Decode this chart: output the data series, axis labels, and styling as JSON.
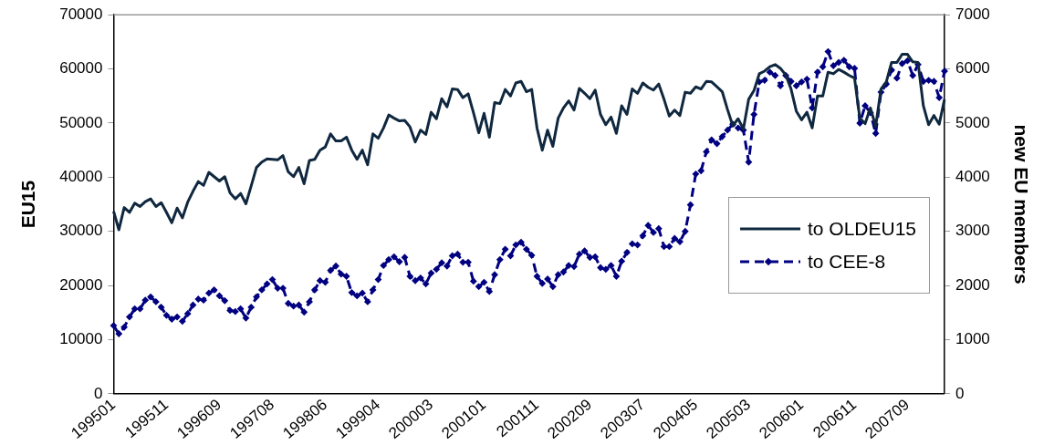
{
  "chart_data": {
    "type": "line",
    "categories": [
      "199501",
      null,
      null,
      null,
      null,
      null,
      null,
      null,
      null,
      null,
      "199511",
      null,
      null,
      null,
      null,
      null,
      null,
      null,
      null,
      null,
      "199609",
      null,
      null,
      null,
      null,
      null,
      null,
      null,
      null,
      null,
      "199708",
      null,
      null,
      null,
      null,
      null,
      null,
      null,
      null,
      null,
      "199806",
      null,
      null,
      null,
      null,
      null,
      null,
      null,
      null,
      null,
      "199904",
      null,
      null,
      null,
      null,
      null,
      null,
      null,
      null,
      null,
      "200003",
      null,
      null,
      null,
      null,
      null,
      null,
      null,
      null,
      null,
      "200101",
      null,
      null,
      null,
      null,
      null,
      null,
      null,
      null,
      null,
      "200111",
      null,
      null,
      null,
      null,
      null,
      null,
      null,
      null,
      null,
      "200209",
      null,
      null,
      null,
      null,
      null,
      null,
      null,
      null,
      null,
      "200307",
      null,
      null,
      null,
      null,
      null,
      null,
      null,
      null,
      null,
      "200405",
      null,
      null,
      null,
      null,
      null,
      null,
      null,
      null,
      null,
      "200503",
      null,
      null,
      null,
      null,
      null,
      null,
      null,
      null,
      null,
      "200601",
      null,
      null,
      null,
      null,
      null,
      null,
      null,
      null,
      null,
      "200611",
      null,
      null,
      null,
      null,
      null,
      null,
      null,
      null,
      null,
      "200709",
      null,
      null,
      null,
      null,
      null,
      null,
      null
    ],
    "ylabel": "EU15",
    "y2label": "new EU members",
    "ylim": [
      0,
      70000
    ],
    "yticks": [
      0,
      10000,
      20000,
      30000,
      40000,
      50000,
      60000,
      70000
    ],
    "y2lim": [
      0,
      7000
    ],
    "y2ticks": [
      0,
      1000,
      2000,
      3000,
      4000,
      5000,
      6000,
      7000
    ],
    "grid": false,
    "legend": "right",
    "series": [
      {
        "name": "to OLDEU15",
        "color": "#10283f",
        "line_style": "solid",
        "marker": "none",
        "values": [
          33700,
          30300,
          34400,
          33500,
          35200,
          34600,
          35500,
          36000,
          34600,
          35300,
          33500,
          31600,
          34300,
          32500,
          35400,
          37400,
          39200,
          38500,
          40900,
          40100,
          39300,
          40100,
          37100,
          36000,
          37000,
          35100,
          38400,
          41800,
          42800,
          43400,
          43300,
          43200,
          44000,
          41000,
          40100,
          41800,
          38800,
          43100,
          43300,
          45000,
          45600,
          48000,
          46700,
          46700,
          47400,
          45000,
          43300,
          45000,
          42300,
          48000,
          47200,
          49100,
          51500,
          50900,
          50400,
          50500,
          49300,
          46500,
          48700,
          47900,
          52000,
          50800,
          54500,
          53000,
          56300,
          56200,
          54700,
          55400,
          51900,
          48200,
          51800,
          47400,
          53800,
          53600,
          56200,
          55000,
          57400,
          57700,
          55800,
          56200,
          49100,
          45000,
          48700,
          45700,
          50900,
          52800,
          54100,
          52400,
          56400,
          55500,
          54500,
          56100,
          51600,
          49700,
          51100,
          48100,
          53200,
          51600,
          56300,
          55500,
          57400,
          56600,
          56100,
          57200,
          54400,
          51300,
          52400,
          51400,
          55700,
          55500,
          56700,
          56300,
          57700,
          57600,
          56700,
          55800,
          52500,
          49500,
          50800,
          48900,
          54400,
          56000,
          59100,
          59600,
          60400,
          60800,
          60100,
          58900,
          56300,
          52200,
          50600,
          52000,
          49100,
          55000,
          55000,
          59400,
          59100,
          59900,
          59400,
          58800,
          58300,
          50900,
          49900,
          52800,
          49400,
          56300,
          57600,
          61200,
          61200,
          62700,
          62700,
          61300,
          61200,
          53200,
          49700,
          51400,
          49800,
          54400
        ]
      },
      {
        "name": "to CEE-8",
        "color": "#000080",
        "axis": "y2",
        "line_style": "dashed",
        "marker": "diamond",
        "values": [
          1260,
          1110,
          1230,
          1420,
          1570,
          1570,
          1730,
          1790,
          1700,
          1600,
          1450,
          1380,
          1420,
          1340,
          1480,
          1640,
          1750,
          1730,
          1860,
          1920,
          1810,
          1720,
          1540,
          1520,
          1570,
          1400,
          1600,
          1790,
          1920,
          2030,
          2110,
          1950,
          1950,
          1670,
          1620,
          1640,
          1510,
          1700,
          1920,
          2090,
          2060,
          2280,
          2360,
          2210,
          2170,
          1870,
          1810,
          1860,
          1700,
          1920,
          2110,
          2370,
          2480,
          2530,
          2440,
          2520,
          2170,
          2090,
          2140,
          2030,
          2230,
          2300,
          2420,
          2360,
          2550,
          2580,
          2430,
          2430,
          2080,
          1980,
          2060,
          1890,
          2200,
          2480,
          2670,
          2550,
          2750,
          2800,
          2670,
          2560,
          2170,
          2040,
          2120,
          1980,
          2200,
          2250,
          2370,
          2350,
          2580,
          2640,
          2520,
          2530,
          2330,
          2300,
          2370,
          2170,
          2450,
          2610,
          2770,
          2750,
          2920,
          3110,
          2980,
          3050,
          2720,
          2720,
          2870,
          2810,
          3000,
          3490,
          4060,
          4120,
          4470,
          4690,
          4620,
          4750,
          4870,
          4980,
          4910,
          4870,
          4280,
          5160,
          5760,
          5790,
          5940,
          5880,
          5690,
          5880,
          5770,
          5690,
          5760,
          5810,
          5280,
          5940,
          6040,
          6320,
          6060,
          6120,
          6160,
          6040,
          6010,
          5000,
          5320,
          5190,
          4810,
          5570,
          5720,
          5980,
          5830,
          6100,
          6150,
          5880,
          6080,
          5770,
          5790,
          5770,
          5470,
          5960
        ]
      }
    ]
  }
}
